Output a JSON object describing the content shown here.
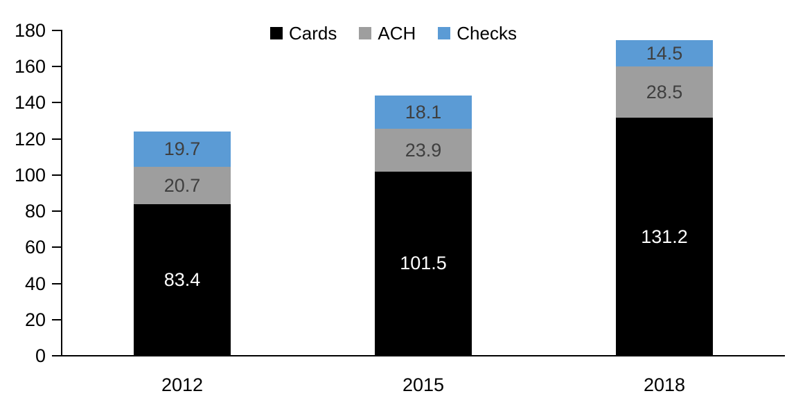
{
  "chart_data": {
    "type": "bar",
    "stacked": true,
    "title": "",
    "xlabel": "",
    "ylabel": "",
    "categories": [
      "2012",
      "2015",
      "2018"
    ],
    "series": [
      {
        "name": "Cards",
        "values": [
          83.4,
          101.5,
          131.2
        ],
        "color": "#000000",
        "label_color": "#ffffff"
      },
      {
        "name": "ACH",
        "values": [
          20.7,
          23.9,
          28.5
        ],
        "color": "#9e9e9e",
        "label_color": "#3f3f3f"
      },
      {
        "name": "Checks",
        "values": [
          19.7,
          18.1,
          14.5
        ],
        "color": "#5b9bd5",
        "label_color": "#3f3f3f"
      }
    ],
    "totals": [
      123.8,
      143.5,
      174.2
    ],
    "ylim": [
      0,
      180
    ],
    "y_ticks": [
      0,
      20,
      40,
      60,
      80,
      100,
      120,
      140,
      160,
      180
    ],
    "grid": false,
    "legend_position": "top-center",
    "data_labels": true,
    "axis_color": "#000000",
    "background_color": "#ffffff"
  }
}
